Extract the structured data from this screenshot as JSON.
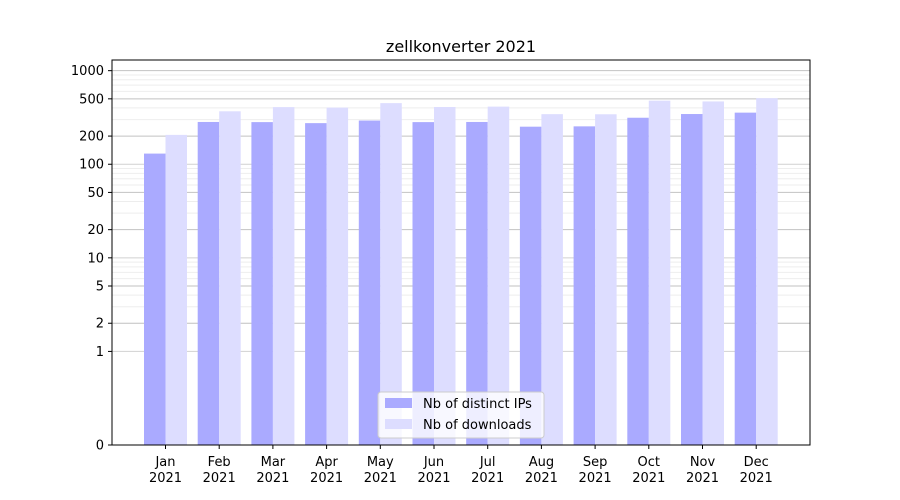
{
  "chart_data": {
    "type": "bar",
    "title": "zellkonverter 2021",
    "xlabel": "",
    "ylabel": "",
    "y_scale": "symlog",
    "y_ticks": [
      0,
      1,
      2,
      5,
      10,
      20,
      50,
      100,
      200,
      500,
      1000
    ],
    "y_tick_labels": [
      "0",
      "1",
      "2",
      "5",
      "10",
      "20",
      "50",
      "100",
      "200",
      "500",
      "1000"
    ],
    "ylim": [
      0,
      1300
    ],
    "grid": true,
    "legend_position": "bottom-center",
    "categories": [
      [
        "Jan",
        "2021"
      ],
      [
        "Feb",
        "2021"
      ],
      [
        "Mar",
        "2021"
      ],
      [
        "Apr",
        "2021"
      ],
      [
        "May",
        "2021"
      ],
      [
        "Jun",
        "2021"
      ],
      [
        "Jul",
        "2021"
      ],
      [
        "Aug",
        "2021"
      ],
      [
        "Sep",
        "2021"
      ],
      [
        "Oct",
        "2021"
      ],
      [
        "Nov",
        "2021"
      ],
      [
        "Dec",
        "2021"
      ]
    ],
    "series": [
      {
        "name": "Nb of distinct IPs",
        "color": "#aaaaff",
        "values": [
          130,
          283,
          282,
          275,
          293,
          282,
          283,
          252,
          254,
          314,
          344,
          356
        ]
      },
      {
        "name": "Nb of downloads",
        "color": "#ddddff",
        "values": [
          206,
          368,
          408,
          403,
          450,
          409,
          413,
          343,
          342,
          478,
          469,
          508
        ]
      }
    ]
  }
}
